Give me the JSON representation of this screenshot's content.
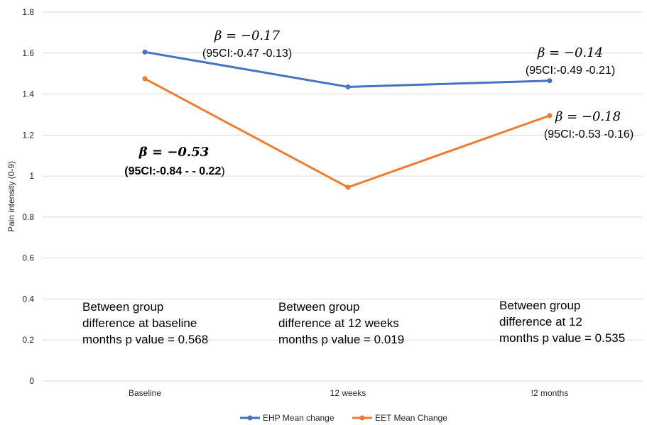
{
  "chart_data": {
    "type": "line",
    "categories": [
      "Baseline",
      "12 weeks",
      "!2 months"
    ],
    "ylabel": "Pain intensity (0-9)",
    "xlabel": "",
    "ylim": [
      0,
      1.8
    ],
    "yticks": [
      "0",
      "0.2",
      "0.4",
      "0.6",
      "0.8",
      "1",
      "1.2",
      "1.4",
      "1.6",
      "1.8"
    ],
    "grid": "horizontal",
    "legend_position": "bottom",
    "series": [
      {
        "name": "EHP Mean change",
        "color": "#4472C4",
        "values": [
          1.605,
          1.435,
          1.465
        ]
      },
      {
        "name": "EET Mean Change",
        "color": "#ED7D31",
        "values": [
          1.475,
          0.945,
          1.295
        ]
      }
    ],
    "annotations": {
      "ehp_baseline_beta": "β = −0.17",
      "ehp_baseline_ci": "(95CI:-0.47 -0.13)",
      "ehp_2months_beta": "β = −0.14",
      "ehp_2months_ci": "(95CI:-0.49 -0.21)",
      "eet_baseline_beta": "β = −0.53",
      "eet_baseline_ci_bold": "(95CI:-0.84 - - 0.22",
      "eet_baseline_ci_close": ")",
      "eet_2months_beta": "β = −0.18",
      "eet_2months_ci": "(95CI:-0.53 -0.16)",
      "note_baseline": [
        "Between group",
        "difference at baseline",
        "months p value = 0.568"
      ],
      "note_12weeks": [
        "Between group",
        "difference at 12 weeks",
        "months p value = 0.019"
      ],
      "note_2months": [
        "Between group",
        "difference at 12",
        "months p value = 0.535"
      ]
    }
  }
}
